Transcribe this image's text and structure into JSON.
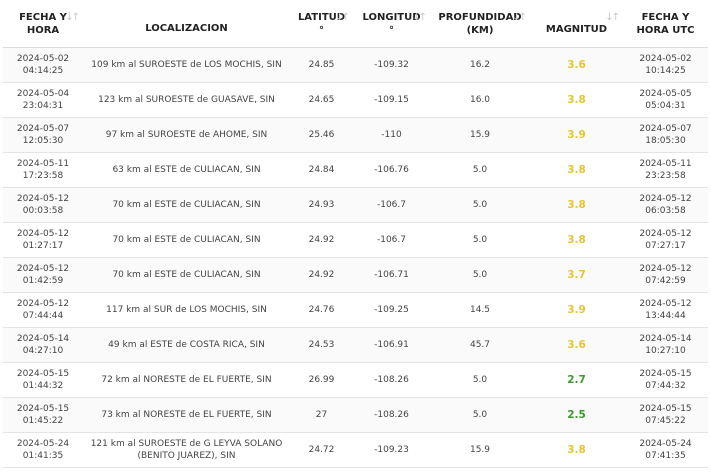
{
  "table": {
    "headers": [
      {
        "line1": "FECHA Y",
        "line2": "HORA",
        "sortable": true
      },
      {
        "line1": "LOCALIZACION",
        "line2": "",
        "sortable": false
      },
      {
        "line1": "LATITUD",
        "line2": "°",
        "sortable": true
      },
      {
        "line1": "LONGITUD",
        "line2": "°",
        "sortable": true
      },
      {
        "line1": "PROFUNDIDAD",
        "line2": "(KM)",
        "sortable": true
      },
      {
        "line1": "MAGNITUD",
        "line2": "",
        "sortable": true
      },
      {
        "line1": "FECHA Y",
        "line2": "HORA UTC",
        "sortable": false
      }
    ],
    "sort_icon": "sort-arrows-icon",
    "rows": [
      {
        "date": "2024-05-02",
        "time": "04:14:25",
        "loc1": "109 km al SUROESTE de LOS MOCHIS, SIN",
        "loc2": "",
        "lat": "24.85",
        "lon": "-109.32",
        "depth": "16.2",
        "mag": "3.6",
        "utc_date": "2024-05-02",
        "utc_time": "10:14:25"
      },
      {
        "date": "2024-05-04",
        "time": "23:04:31",
        "loc1": "123 km al SUROESTE de GUASAVE, SIN",
        "loc2": "",
        "lat": "24.65",
        "lon": "-109.15",
        "depth": "16.0",
        "mag": "3.8",
        "utc_date": "2024-05-05",
        "utc_time": "05:04:31"
      },
      {
        "date": "2024-05-07",
        "time": "12:05:30",
        "loc1": "97 km al SUROESTE de AHOME, SIN",
        "loc2": "",
        "lat": "25.46",
        "lon": "-110",
        "depth": "15.9",
        "mag": "3.9",
        "utc_date": "2024-05-07",
        "utc_time": "18:05:30"
      },
      {
        "date": "2024-05-11",
        "time": "17:23:58",
        "loc1": "63 km al ESTE de CULIACAN, SIN",
        "loc2": "",
        "lat": "24.84",
        "lon": "-106.76",
        "depth": "5.0",
        "mag": "3.8",
        "utc_date": "2024-05-11",
        "utc_time": "23:23:58"
      },
      {
        "date": "2024-05-12",
        "time": "00:03:58",
        "loc1": "70 km al ESTE de CULIACAN, SIN",
        "loc2": "",
        "lat": "24.93",
        "lon": "-106.7",
        "depth": "5.0",
        "mag": "3.8",
        "utc_date": "2024-05-12",
        "utc_time": "06:03:58"
      },
      {
        "date": "2024-05-12",
        "time": "01:27:17",
        "loc1": "70 km al ESTE de CULIACAN, SIN",
        "loc2": "",
        "lat": "24.92",
        "lon": "-106.7",
        "depth": "5.0",
        "mag": "3.8",
        "utc_date": "2024-05-12",
        "utc_time": "07:27:17"
      },
      {
        "date": "2024-05-12",
        "time": "01:42:59",
        "loc1": "70 km al ESTE de CULIACAN, SIN",
        "loc2": "",
        "lat": "24.92",
        "lon": "-106.71",
        "depth": "5.0",
        "mag": "3.7",
        "utc_date": "2024-05-12",
        "utc_time": "07:42:59"
      },
      {
        "date": "2024-05-12",
        "time": "07:44:44",
        "loc1": "117 km al SUR de LOS MOCHIS, SIN",
        "loc2": "",
        "lat": "24.76",
        "lon": "-109.25",
        "depth": "14.5",
        "mag": "3.9",
        "utc_date": "2024-05-12",
        "utc_time": "13:44:44"
      },
      {
        "date": "2024-05-14",
        "time": "04:27:10",
        "loc1": "49 km al ESTE de COSTA RICA, SIN",
        "loc2": "",
        "lat": "24.53",
        "lon": "-106.91",
        "depth": "45.7",
        "mag": "3.6",
        "utc_date": "2024-05-14",
        "utc_time": "10:27:10"
      },
      {
        "date": "2024-05-15",
        "time": "01:44:32",
        "loc1": "72 km al NORESTE de EL FUERTE, SIN",
        "loc2": "",
        "lat": "26.99",
        "lon": "-108.26",
        "depth": "5.0",
        "mag": "2.7",
        "utc_date": "2024-05-15",
        "utc_time": "07:44:32"
      },
      {
        "date": "2024-05-15",
        "time": "01:45:22",
        "loc1": "73 km al NORESTE de EL FUERTE, SIN",
        "loc2": "",
        "lat": "27",
        "lon": "-108.26",
        "depth": "5.0",
        "mag": "2.5",
        "utc_date": "2024-05-15",
        "utc_time": "07:45:22"
      },
      {
        "date": "2024-05-24",
        "time": "01:41:35",
        "loc1": "121 km al SUROESTE de G LEYVA SOLANO",
        "loc2": "(BENITO JUAREZ), SIN",
        "lat": "24.72",
        "lon": "-109.23",
        "depth": "15.9",
        "mag": "3.8",
        "utc_date": "2024-05-24",
        "utc_time": "07:41:35"
      }
    ]
  },
  "colors": {
    "mag_yellow": "#e6c434",
    "mag_green": "#3f9a2e",
    "header_text": "#222222",
    "cell_text": "#444444",
    "row_border": "#e4e4e4"
  }
}
